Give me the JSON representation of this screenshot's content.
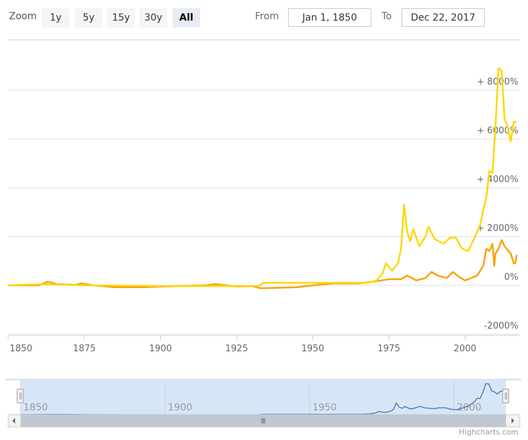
{
  "range_selector": {
    "zoom_label": "Zoom",
    "buttons": [
      "1y",
      "5y",
      "15y",
      "30y",
      "All"
    ],
    "selected": "All",
    "from_label": "From",
    "from_value": "Jan 1, 1850",
    "to_label": "To",
    "to_value": "Dec 22, 2017"
  },
  "credit": "Highcharts.com",
  "colors": {
    "series1": "#ffd700",
    "series2": "#f7a30c",
    "navigator_line": "#4572a7",
    "navigator_fill": "#d7e6f7"
  },
  "chart_data": {
    "type": "line",
    "xlim": [
      1850,
      2017.97
    ],
    "ylim": [
      -2000,
      9000
    ],
    "x_ticks": [
      "1850",
      "1875",
      "1900",
      "1925",
      "1950",
      "1975",
      "2000"
    ],
    "y_ticks": [
      "-2000%",
      "0%",
      "+ 2000%",
      "+ 4000%",
      "+ 6000%",
      "+ 8000%"
    ],
    "y_tick_values": [
      -2000,
      0,
      2000,
      4000,
      6000,
      8000
    ],
    "grid": true,
    "navigator_ticks": [
      "1850",
      "1900",
      "1950",
      "2000"
    ],
    "series": [
      {
        "color": "#ffd700",
        "points": [
          [
            1850,
            0
          ],
          [
            1862,
            50
          ],
          [
            1875,
            0
          ],
          [
            1900,
            -30
          ],
          [
            1932,
            -30
          ],
          [
            1934,
            100
          ],
          [
            1968,
            100
          ],
          [
            1971,
            200
          ],
          [
            1973,
            500
          ],
          [
            1974,
            900
          ],
          [
            1976,
            600
          ],
          [
            1978,
            900
          ],
          [
            1979,
            1500
          ],
          [
            1980,
            3300
          ],
          [
            1981,
            2200
          ],
          [
            1982,
            1800
          ],
          [
            1983,
            2300
          ],
          [
            1985,
            1600
          ],
          [
            1987,
            2000
          ],
          [
            1988,
            2400
          ],
          [
            1990,
            1900
          ],
          [
            1993,
            1700
          ],
          [
            1995,
            1950
          ],
          [
            1997,
            1950
          ],
          [
            1999,
            1500
          ],
          [
            2001,
            1400
          ],
          [
            2003,
            1900
          ],
          [
            2005,
            2500
          ],
          [
            2006,
            3100
          ],
          [
            2007,
            3600
          ],
          [
            2008,
            4700
          ],
          [
            2009,
            4600
          ],
          [
            2010,
            6500
          ],
          [
            2011,
            8900
          ],
          [
            2012,
            8800
          ],
          [
            2013,
            6800
          ],
          [
            2014,
            6500
          ],
          [
            2015,
            5900
          ],
          [
            2016,
            6700
          ],
          [
            2017,
            6700
          ]
        ]
      },
      {
        "color": "#f7a30c",
        "points": [
          [
            1850,
            0
          ],
          [
            1860,
            0
          ],
          [
            1863,
            150
          ],
          [
            1866,
            50
          ],
          [
            1872,
            20
          ],
          [
            1874,
            80
          ],
          [
            1878,
            0
          ],
          [
            1885,
            -80
          ],
          [
            1895,
            -80
          ],
          [
            1905,
            -30
          ],
          [
            1915,
            0
          ],
          [
            1918,
            50
          ],
          [
            1925,
            -50
          ],
          [
            1930,
            -30
          ],
          [
            1933,
            -120
          ],
          [
            1945,
            -80
          ],
          [
            1950,
            0
          ],
          [
            1957,
            80
          ],
          [
            1965,
            80
          ],
          [
            1970,
            150
          ],
          [
            1975,
            250
          ],
          [
            1979,
            250
          ],
          [
            1981,
            400
          ],
          [
            1984,
            200
          ],
          [
            1987,
            300
          ],
          [
            1989,
            550
          ],
          [
            1991,
            400
          ],
          [
            1994,
            300
          ],
          [
            1996,
            550
          ],
          [
            1998,
            350
          ],
          [
            2000,
            200
          ],
          [
            2002,
            300
          ],
          [
            2004,
            400
          ],
          [
            2006,
            800
          ],
          [
            2007,
            1500
          ],
          [
            2008,
            1400
          ],
          [
            2009,
            1700
          ],
          [
            2009.6,
            800
          ],
          [
            2010,
            1300
          ],
          [
            2011,
            1500
          ],
          [
            2012,
            1850
          ],
          [
            2013,
            1600
          ],
          [
            2015,
            1300
          ],
          [
            2016,
            900
          ],
          [
            2016.5,
            900
          ],
          [
            2017,
            1250
          ]
        ]
      }
    ]
  }
}
